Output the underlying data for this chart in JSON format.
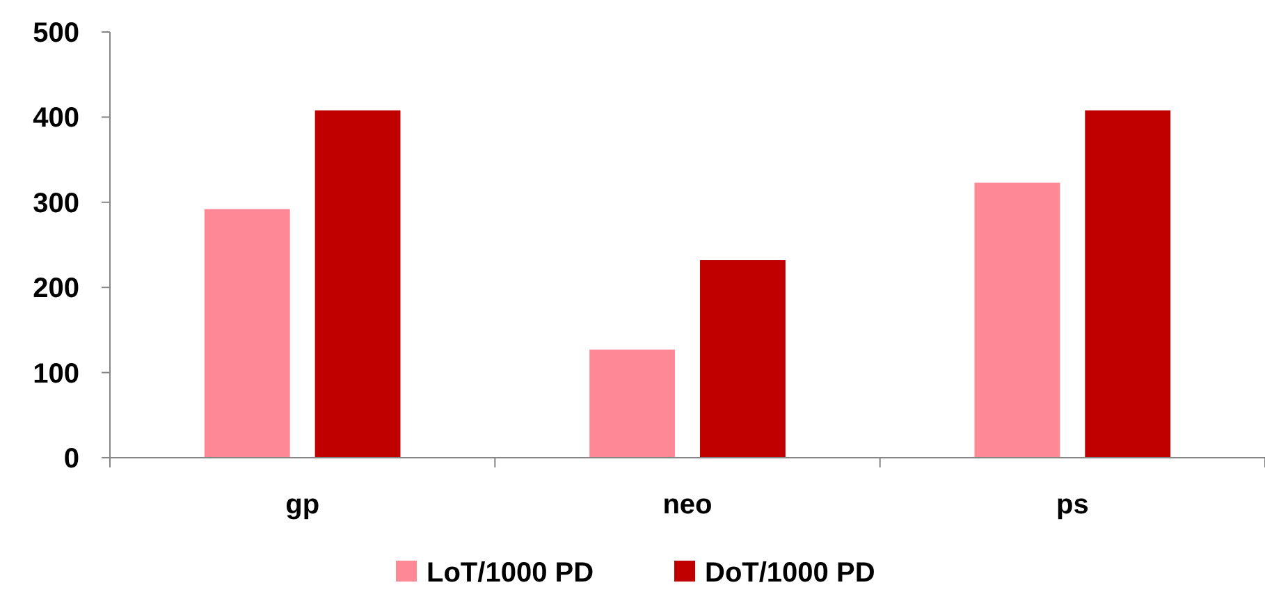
{
  "chart_data": {
    "type": "bar",
    "categories": [
      "gp",
      "neo",
      "ps"
    ],
    "series": [
      {
        "name": "LoT/1000 PD",
        "color": "#ff8896",
        "values": [
          292,
          127,
          323
        ]
      },
      {
        "name": "DoT/1000 PD",
        "color": "#c00000",
        "values": [
          408,
          232,
          408
        ]
      }
    ],
    "ylim": [
      0,
      500
    ],
    "yticks": [
      0,
      100,
      200,
      300,
      400,
      500
    ],
    "grid": false,
    "legend": "bottom"
  }
}
